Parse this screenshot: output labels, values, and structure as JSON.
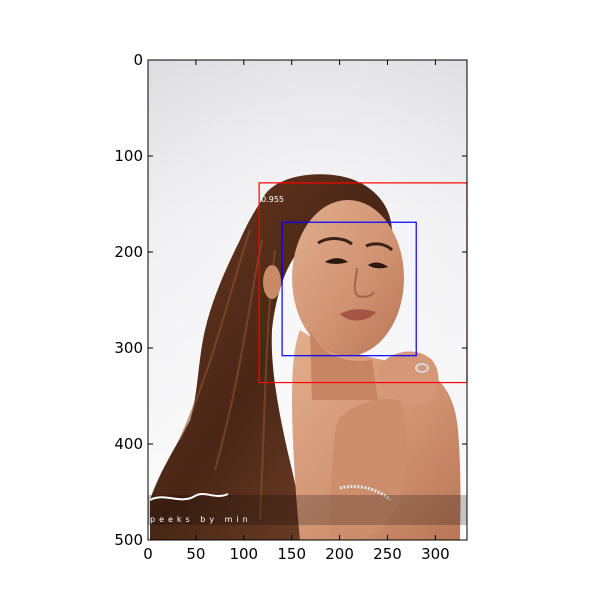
{
  "image": {
    "width": 333,
    "height": 500,
    "subject": "portrait of a woman with long brown hair, hands on shoulder",
    "watermark_text": "peeks by min"
  },
  "axes": {
    "xlim": [
      0,
      333
    ],
    "ylim": [
      500,
      0
    ],
    "x_ticks": [
      0,
      50,
      100,
      150,
      200,
      250,
      300
    ],
    "x_tick_labels": [
      "0",
      "50",
      "100",
      "150",
      "200",
      "250",
      "300"
    ],
    "y_ticks": [
      0,
      100,
      200,
      300,
      400,
      500
    ],
    "y_tick_labels": [
      "0",
      "100",
      "200",
      "300",
      "400",
      "500"
    ],
    "grid": false
  },
  "detections": [
    {
      "name": "red-box",
      "color": "#ff0000",
      "x1": 116,
      "y1": 128,
      "x2": 333,
      "y2": 336,
      "score": "0.955"
    },
    {
      "name": "blue-box",
      "color": "#0000ff",
      "x1": 140,
      "y1": 169,
      "x2": 280,
      "y2": 308
    }
  ],
  "colors": {
    "background_top": "#e4e3e6",
    "background_bottom": "#ffffff",
    "hair": "#5a3220",
    "skin": "#d39a7a",
    "frame": "#000000"
  }
}
